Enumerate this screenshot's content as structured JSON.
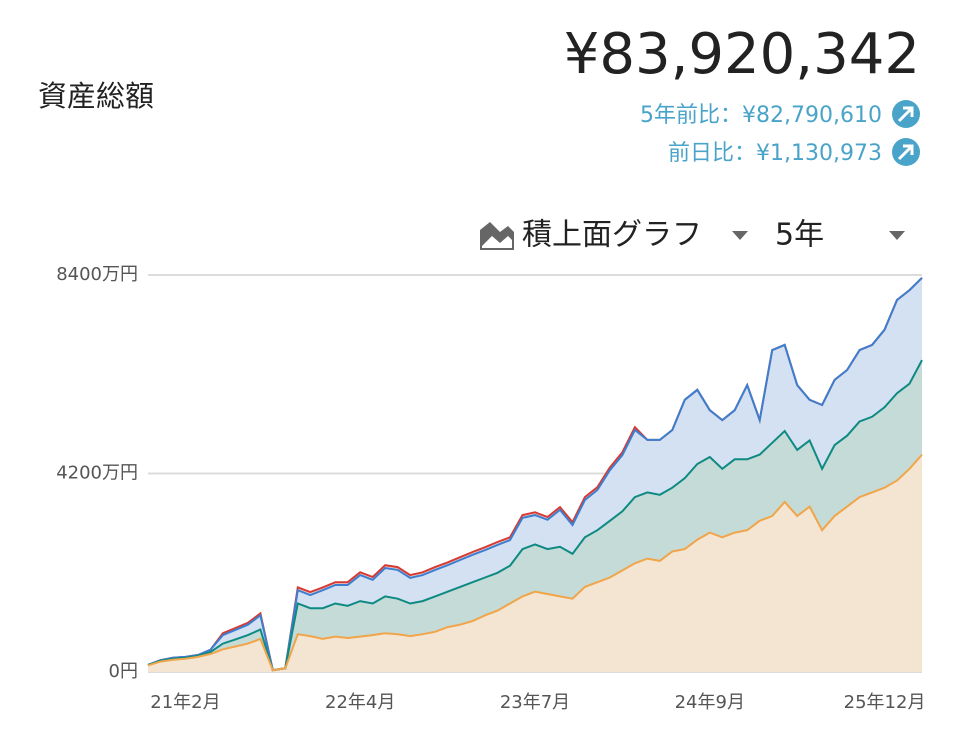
{
  "header": {
    "label": "資産総額",
    "total": "¥83,920,342",
    "five_year_change": "5年前比：¥82,790,610",
    "day_change": "前日比：¥1,130,973"
  },
  "controls": {
    "chart_kind": "積上面グラフ",
    "period": "5年"
  },
  "chart_data": {
    "type": "stacked_area",
    "categories": [
      null,
      null,
      null,
      "21年2月",
      null,
      null,
      null,
      null,
      null,
      null,
      null,
      null,
      null,
      null,
      null,
      null,
      null,
      "22年4月",
      null,
      null,
      null,
      null,
      null,
      null,
      null,
      null,
      null,
      null,
      null,
      null,
      null,
      "23年7月",
      null,
      null,
      null,
      null,
      null,
      null,
      null,
      null,
      null,
      null,
      null,
      null,
      null,
      "24年9月",
      null,
      null,
      null,
      null,
      null,
      null,
      null,
      null,
      null,
      null,
      null,
      null,
      null,
      "25年12月",
      null,
      null,
      null
    ],
    "series": [
      {
        "color": "#f0a54a",
        "fill": "#f4e5d2",
        "values": [
          140,
          220,
          260,
          280,
          320,
          380,
          480,
          540,
          600,
          700,
          40,
          80,
          800,
          760,
          700,
          750,
          720,
          750,
          780,
          820,
          800,
          760,
          800,
          850,
          950,
          1000,
          1080,
          1200,
          1300,
          1450,
          1600,
          1700,
          1650,
          1600,
          1550,
          1800,
          1900,
          2000,
          2150,
          2300,
          2400,
          2350,
          2550,
          2600,
          2800,
          2950,
          2850,
          2950,
          3000,
          3200,
          3300,
          3600,
          3300,
          3500,
          3000,
          3300,
          3500,
          3700,
          3800,
          3900,
          4050,
          4300,
          4600
        ]
      },
      {
        "color": "#0e8a82",
        "fill": "#c5dbd7",
        "values": [
          10,
          20,
          20,
          20,
          20,
          40,
          120,
          150,
          180,
          200,
          0,
          0,
          650,
          590,
          650,
          700,
          680,
          750,
          670,
          780,
          750,
          690,
          700,
          750,
          750,
          800,
          820,
          800,
          800,
          800,
          1000,
          1000,
          950,
          1050,
          950,
          1050,
          1100,
          1200,
          1250,
          1400,
          1400,
          1400,
          1350,
          1500,
          1600,
          1600,
          1450,
          1550,
          1500,
          1400,
          1550,
          1500,
          1400,
          1400,
          1300,
          1500,
          1500,
          1600,
          1600,
          1700,
          1850,
          1800,
          2000
        ]
      },
      {
        "color": "#3b7fd1",
        "fill": "#d4e1f3",
        "values": [
          0,
          10,
          20,
          20,
          20,
          50,
          180,
          200,
          220,
          300,
          0,
          0,
          280,
          280,
          380,
          390,
          440,
          550,
          500,
          600,
          610,
          540,
          550,
          560,
          560,
          570,
          580,
          580,
          590,
          540,
          660,
          620,
          620,
          780,
          610,
          790,
          850,
          1070,
          1190,
          1420,
          1110,
          1160,
          1220,
          1660,
          1570,
          990,
          1030,
          1040,
          1570,
          730,
          1960,
          1820,
          1370,
          860,
          1350,
          1380,
          1390,
          1510,
          1520,
          1640,
          1970,
          1980,
          1740
        ]
      },
      {
        "color": "#d63a33",
        "fill": "#f1d2d0",
        "values": [
          0,
          0,
          0,
          0,
          0,
          0,
          40,
          40,
          40,
          40,
          0,
          0,
          60,
          60,
          60,
          60,
          60,
          60,
          60,
          60,
          60,
          60,
          60,
          60,
          60,
          60,
          60,
          60,
          60,
          60,
          60,
          60,
          60,
          60,
          60,
          60,
          60,
          60,
          60,
          60,
          0,
          0,
          0,
          0,
          0,
          0,
          0,
          0,
          0,
          0,
          0,
          0,
          0,
          0,
          0,
          0,
          0,
          0,
          0,
          0,
          0,
          0,
          0
        ]
      }
    ],
    "ylim": [
      0,
      8400
    ],
    "yticks": [
      {
        "value": 0,
        "label": "0円"
      },
      {
        "value": 4200,
        "label": "4200万円"
      },
      {
        "value": 8400,
        "label": "8400万円"
      }
    ],
    "grid": true
  }
}
